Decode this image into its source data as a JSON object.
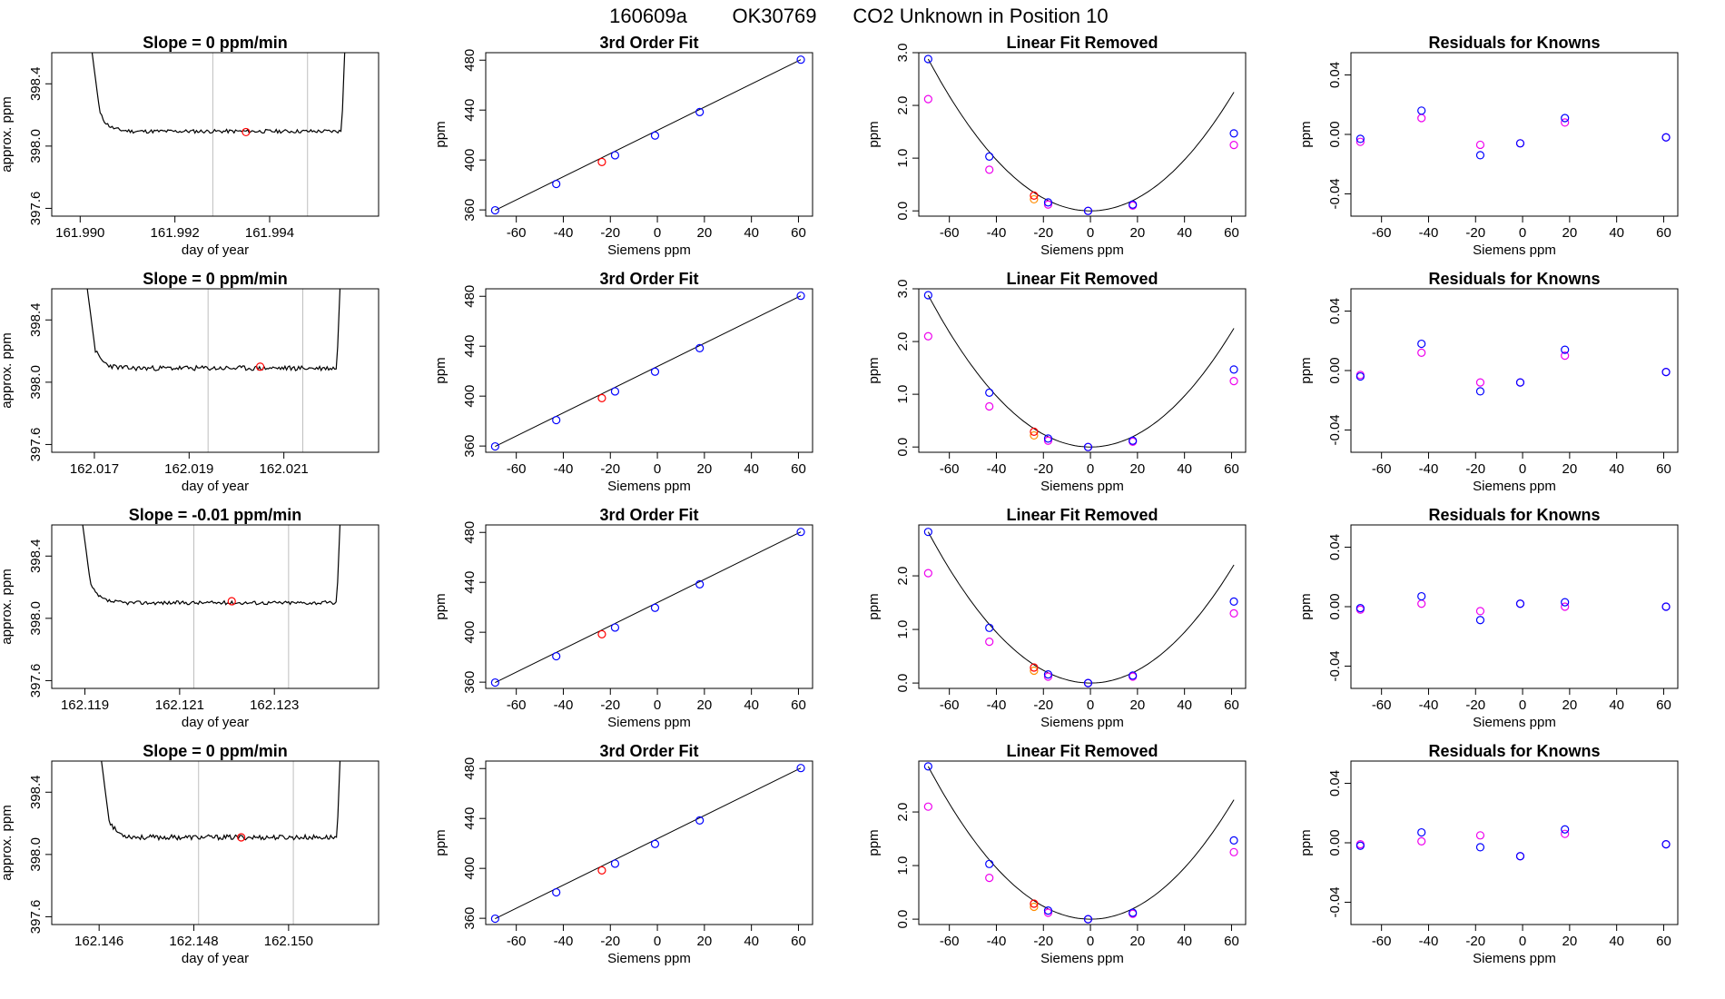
{
  "header": {
    "run": "160609a",
    "tank": "OK30769",
    "description": "CO2 Unknown in Position  10"
  },
  "colors": {
    "line": "#000000",
    "box": "#000000",
    "vline": "#bebebe",
    "primary": "#0000ff",
    "secondary": "#ee00ee",
    "unknown_primary": "#ff0000",
    "unknown_secondary": "#ff8c00"
  },
  "chart_data": [
    {
      "type": "line",
      "row": 0,
      "panel": "trace",
      "title": "Slope =  0  ppm/min",
      "xlabel": "day of year",
      "ylabel": "approx. ppm",
      "xlim": [
        161.9894,
        161.9963
      ],
      "ylim": [
        397.55,
        398.6
      ],
      "xticks": [
        161.99,
        161.992,
        161.994
      ],
      "xticklabels": [
        "161.990",
        "161.992",
        "161.994"
      ],
      "yticks": [
        397.6,
        398.0,
        398.4
      ],
      "yticklabels": [
        "397.6",
        "398.0",
        "398.4"
      ],
      "vlines": [
        161.9928,
        161.9948
      ],
      "trace": {
        "x_start": 161.9902,
        "x_end": 161.9956,
        "y_rise": 398.72,
        "y_base": 398.095,
        "jitter": 0.012,
        "seed": 11
      },
      "unknown_point": {
        "x": 161.9935,
        "y": 398.09
      }
    },
    {
      "type": "scatter",
      "row": 0,
      "panel": "fit",
      "title": "3rd Order Fit",
      "xlabel": "Siemens ppm",
      "ylabel": "ppm",
      "xlim": [
        -73,
        66
      ],
      "ylim": [
        355,
        486
      ],
      "xticks": [
        -60,
        -40,
        -20,
        0,
        20,
        40,
        60
      ],
      "yticks": [
        360,
        400,
        440,
        480
      ],
      "fit_line": {
        "x1": -69,
        "y1": 359.7,
        "x2": 61,
        "y2": 480.4
      },
      "points_primary": {
        "x": [
          -69,
          -43,
          -18,
          -1,
          18,
          61
        ],
        "y": [
          359.7,
          380.8,
          403.8,
          419.6,
          438.4,
          480.4
        ]
      },
      "unknown_point": {
        "x": -23.6,
        "y": 398.4
      }
    },
    {
      "type": "scatter",
      "row": 0,
      "panel": "linear",
      "title": "Linear Fit Removed",
      "xlabel": "Siemens ppm",
      "ylabel": "ppm",
      "xlim": [
        -73,
        66
      ],
      "ylim": [
        -0.1,
        3.0
      ],
      "xticks": [
        -60,
        -40,
        -20,
        0,
        20,
        40,
        60
      ],
      "yticks": [
        0.0,
        1.0,
        2.0,
        3.0
      ],
      "yticklabels": [
        "0.0",
        "1.0",
        "2.0",
        "3.0"
      ],
      "curve": {
        "type": "parabola",
        "x0": 0,
        "xmin": -69,
        "xmax": 61,
        "xref": -69,
        "yref": 2.88
      },
      "points_primary": {
        "x": [
          -69,
          -43,
          -18,
          -1,
          18,
          61
        ],
        "y": [
          2.88,
          1.03,
          0.16,
          0.0,
          0.12,
          1.47
        ]
      },
      "points_secondary": {
        "x": [
          -69,
          -43,
          -18,
          -1,
          18,
          61
        ],
        "y": [
          2.12,
          0.78,
          0.12,
          0.0,
          0.1,
          1.25
        ]
      },
      "unknown_primary": {
        "x": -24,
        "y": 0.29
      },
      "unknown_secondary": {
        "x": -24,
        "y": 0.22
      }
    },
    {
      "type": "scatter",
      "row": 0,
      "panel": "residuals",
      "title": "Residuals for Knowns",
      "xlabel": "Siemens ppm",
      "ylabel": "ppm",
      "xlim": [
        -73,
        66
      ],
      "ylim": [
        -0.055,
        0.055
      ],
      "xticks": [
        -60,
        -40,
        -20,
        0,
        20,
        40,
        60
      ],
      "yticks": [
        -0.04,
        0.0,
        0.04
      ],
      "yticklabels": [
        "-0.04",
        "0.00",
        "0.04"
      ],
      "points_primary": {
        "x": [
          -69,
          -43,
          -18,
          -1,
          18,
          61
        ],
        "y": [
          -0.003,
          0.016,
          -0.014,
          -0.006,
          0.011,
          -0.002
        ]
      },
      "points_secondary": {
        "x": [
          -69,
          -43,
          -18,
          -1,
          18,
          61
        ],
        "y": [
          -0.005,
          0.011,
          -0.007,
          -0.006,
          0.008,
          -0.002
        ]
      }
    },
    {
      "type": "line",
      "row": 1,
      "panel": "trace",
      "title": "Slope =  0  ppm/min",
      "xlabel": "day of year",
      "ylabel": "approx. ppm",
      "xlim": [
        162.0161,
        162.023
      ],
      "ylim": [
        397.55,
        398.6
      ],
      "xticks": [
        162.017,
        162.019,
        162.021
      ],
      "xticklabels": [
        "162.017",
        "162.019",
        "162.021"
      ],
      "yticks": [
        397.6,
        398.0,
        398.4
      ],
      "yticklabels": [
        "397.6",
        "398.0",
        "398.4"
      ],
      "vlines": [
        162.0194,
        162.0214
      ],
      "trace": {
        "x_start": 162.0168,
        "x_end": 162.0222,
        "y_rise": 398.72,
        "y_base": 398.09,
        "jitter": 0.016,
        "seed": 23
      },
      "unknown_point": {
        "x": 162.0205,
        "y": 398.1
      }
    },
    {
      "type": "scatter",
      "row": 1,
      "panel": "fit",
      "title": "3rd Order Fit",
      "xlabel": "Siemens ppm",
      "ylabel": "ppm",
      "xlim": [
        -73,
        66
      ],
      "ylim": [
        355,
        486
      ],
      "xticks": [
        -60,
        -40,
        -20,
        0,
        20,
        40,
        60
      ],
      "yticks": [
        360,
        400,
        440,
        480
      ],
      "fit_line": {
        "x1": -69,
        "y1": 359.7,
        "x2": 61,
        "y2": 480.4
      },
      "points_primary": {
        "x": [
          -69,
          -43,
          -18,
          -1,
          18,
          61
        ],
        "y": [
          359.7,
          380.8,
          403.8,
          419.6,
          438.4,
          480.4
        ]
      },
      "unknown_point": {
        "x": -23.6,
        "y": 398.4
      }
    },
    {
      "type": "scatter",
      "row": 1,
      "panel": "linear",
      "title": "Linear Fit Removed",
      "xlabel": "Siemens ppm",
      "ylabel": "ppm",
      "xlim": [
        -73,
        66
      ],
      "ylim": [
        -0.1,
        3.0
      ],
      "xticks": [
        -60,
        -40,
        -20,
        0,
        20,
        40,
        60
      ],
      "yticks": [
        0.0,
        1.0,
        2.0,
        3.0
      ],
      "yticklabels": [
        "0.0",
        "1.0",
        "2.0",
        "3.0"
      ],
      "curve": {
        "type": "parabola",
        "x0": 0,
        "xmin": -69,
        "xmax": 61,
        "xref": -69,
        "yref": 2.88
      },
      "points_primary": {
        "x": [
          -69,
          -43,
          -18,
          -1,
          18,
          61
        ],
        "y": [
          2.88,
          1.03,
          0.16,
          0.0,
          0.12,
          1.47
        ]
      },
      "points_secondary": {
        "x": [
          -69,
          -43,
          -18,
          -1,
          18,
          61
        ],
        "y": [
          2.1,
          0.77,
          0.12,
          0.0,
          0.1,
          1.25
        ]
      },
      "unknown_primary": {
        "x": -24,
        "y": 0.29
      },
      "unknown_secondary": {
        "x": -24,
        "y": 0.22
      }
    },
    {
      "type": "scatter",
      "row": 1,
      "panel": "residuals",
      "title": "Residuals for Knowns",
      "xlabel": "Siemens ppm",
      "ylabel": "ppm",
      "xlim": [
        -73,
        66
      ],
      "ylim": [
        -0.055,
        0.055
      ],
      "xticks": [
        -60,
        -40,
        -20,
        0,
        20,
        40,
        60
      ],
      "yticks": [
        -0.04,
        0.0,
        0.04
      ],
      "yticklabels": [
        "-0.04",
        "0.00",
        "0.04"
      ],
      "points_primary": {
        "x": [
          -69,
          -43,
          -18,
          -1,
          18,
          61
        ],
        "y": [
          -0.004,
          0.018,
          -0.014,
          -0.008,
          0.014,
          -0.001
        ]
      },
      "points_secondary": {
        "x": [
          -69,
          -43,
          -18,
          -1,
          18,
          61
        ],
        "y": [
          -0.003,
          0.012,
          -0.008,
          -0.008,
          0.01,
          -0.001
        ]
      }
    },
    {
      "type": "line",
      "row": 2,
      "panel": "trace",
      "title": "Slope =  -0.01  ppm/min",
      "xlabel": "day of year",
      "ylabel": "approx. ppm",
      "xlim": [
        162.1183,
        162.1252
      ],
      "ylim": [
        397.55,
        398.6
      ],
      "xticks": [
        162.119,
        162.121,
        162.123
      ],
      "xticklabels": [
        "162.119",
        "162.121",
        "162.123"
      ],
      "yticks": [
        397.6,
        398.0,
        398.4
      ],
      "yticklabels": [
        "397.6",
        "398.0",
        "398.4"
      ],
      "vlines": [
        162.1213,
        162.1233
      ],
      "trace": {
        "x_start": 162.1189,
        "x_end": 162.1244,
        "y_rise": 398.72,
        "y_base": 398.1,
        "jitter": 0.012,
        "seed": 37
      },
      "unknown_point": {
        "x": 162.1221,
        "y": 398.11
      }
    },
    {
      "type": "scatter",
      "row": 2,
      "panel": "fit",
      "title": "3rd Order Fit",
      "xlabel": "Siemens ppm",
      "ylabel": "ppm",
      "xlim": [
        -73,
        66
      ],
      "ylim": [
        355,
        486
      ],
      "xticks": [
        -60,
        -40,
        -20,
        0,
        20,
        40,
        60
      ],
      "yticks": [
        360,
        400,
        440,
        480
      ],
      "fit_line": {
        "x1": -69,
        "y1": 359.7,
        "x2": 61,
        "y2": 480.4
      },
      "points_primary": {
        "x": [
          -69,
          -43,
          -18,
          -1,
          18,
          61
        ],
        "y": [
          359.7,
          380.8,
          403.8,
          419.6,
          438.4,
          480.4
        ]
      },
      "unknown_point": {
        "x": -23.6,
        "y": 398.4
      }
    },
    {
      "type": "scatter",
      "row": 2,
      "panel": "linear",
      "title": "Linear Fit Removed",
      "xlabel": "Siemens ppm",
      "ylabel": "ppm",
      "xlim": [
        -73,
        66
      ],
      "ylim": [
        -0.1,
        2.95
      ],
      "xticks": [
        -60,
        -40,
        -20,
        0,
        20,
        40,
        60
      ],
      "yticks": [
        0.0,
        1.0,
        2.0
      ],
      "yticklabels": [
        "0.0",
        "1.0",
        "2.0"
      ],
      "curve": {
        "type": "parabola",
        "x0": 0,
        "xmin": -69,
        "xmax": 61,
        "xref": -69,
        "yref": 2.82
      },
      "points_primary": {
        "x": [
          -69,
          -43,
          -18,
          -1,
          18,
          61
        ],
        "y": [
          2.82,
          1.03,
          0.16,
          0.0,
          0.14,
          1.52
        ]
      },
      "points_secondary": {
        "x": [
          -69,
          -43,
          -18,
          -1,
          18,
          61
        ],
        "y": [
          2.05,
          0.77,
          0.12,
          0.0,
          0.12,
          1.3
        ]
      },
      "unknown_primary": {
        "x": -24,
        "y": 0.29
      },
      "unknown_secondary": {
        "x": -24,
        "y": 0.23
      }
    },
    {
      "type": "scatter",
      "row": 2,
      "panel": "residuals",
      "title": "Residuals for Knowns",
      "xlabel": "Siemens ppm",
      "ylabel": "ppm",
      "xlim": [
        -73,
        66
      ],
      "ylim": [
        -0.055,
        0.055
      ],
      "xticks": [
        -60,
        -40,
        -20,
        0,
        20,
        40,
        60
      ],
      "yticks": [
        -0.04,
        0.0,
        0.04
      ],
      "yticklabels": [
        "-0.04",
        "0.00",
        "0.04"
      ],
      "points_primary": {
        "x": [
          -69,
          -43,
          -18,
          -1,
          18,
          61
        ],
        "y": [
          -0.001,
          0.007,
          -0.009,
          0.002,
          0.003,
          0.0
        ]
      },
      "points_secondary": {
        "x": [
          -69,
          -43,
          -18,
          -1,
          18,
          61
        ],
        "y": [
          -0.002,
          0.002,
          -0.003,
          0.002,
          0.0,
          0.0
        ]
      }
    },
    {
      "type": "line",
      "row": 3,
      "panel": "trace",
      "title": "Slope =  0  ppm/min",
      "xlabel": "day of year",
      "ylabel": "approx. ppm",
      "xlim": [
        162.145,
        162.1519
      ],
      "ylim": [
        397.55,
        398.6
      ],
      "xticks": [
        162.146,
        162.148,
        162.15
      ],
      "xticklabels": [
        "162.146",
        "162.148",
        "162.150"
      ],
      "yticks": [
        397.6,
        398.0,
        398.4
      ],
      "yticklabels": [
        "397.6",
        "398.0",
        "398.4"
      ],
      "vlines": [
        162.1481,
        162.1501
      ],
      "trace": {
        "x_start": 162.146,
        "x_end": 162.1511,
        "y_rise": 398.72,
        "y_base": 398.11,
        "jitter": 0.016,
        "seed": 53
      },
      "unknown_point": {
        "x": 162.149,
        "y": 398.11
      }
    },
    {
      "type": "scatter",
      "row": 3,
      "panel": "fit",
      "title": "3rd Order Fit",
      "xlabel": "Siemens ppm",
      "ylabel": "ppm",
      "xlim": [
        -73,
        66
      ],
      "ylim": [
        355,
        486
      ],
      "xticks": [
        -60,
        -40,
        -20,
        0,
        20,
        40,
        60
      ],
      "yticks": [
        360,
        400,
        440,
        480
      ],
      "fit_line": {
        "x1": -69,
        "y1": 359.7,
        "x2": 61,
        "y2": 480.4
      },
      "points_primary": {
        "x": [
          -69,
          -43,
          -18,
          -1,
          18,
          61
        ],
        "y": [
          359.7,
          380.8,
          403.8,
          419.6,
          438.4,
          480.4
        ]
      },
      "unknown_point": {
        "x": -23.6,
        "y": 398.4
      }
    },
    {
      "type": "scatter",
      "row": 3,
      "panel": "linear",
      "title": "Linear Fit Removed",
      "xlabel": "Siemens ppm",
      "ylabel": "ppm",
      "xlim": [
        -73,
        66
      ],
      "ylim": [
        -0.1,
        2.95
      ],
      "xticks": [
        -60,
        -40,
        -20,
        0,
        20,
        40,
        60
      ],
      "yticks": [
        0.0,
        1.0,
        2.0
      ],
      "yticklabels": [
        "0.0",
        "1.0",
        "2.0"
      ],
      "curve": {
        "type": "parabola",
        "x0": 0,
        "xmin": -69,
        "xmax": 61,
        "xref": -69,
        "yref": 2.85
      },
      "points_primary": {
        "x": [
          -69,
          -43,
          -18,
          -1,
          18,
          61
        ],
        "y": [
          2.85,
          1.03,
          0.16,
          0.0,
          0.12,
          1.47
        ]
      },
      "points_secondary": {
        "x": [
          -69,
          -43,
          -18,
          -1,
          18,
          61
        ],
        "y": [
          2.1,
          0.77,
          0.12,
          0.0,
          0.1,
          1.25
        ]
      },
      "unknown_primary": {
        "x": -24,
        "y": 0.29
      },
      "unknown_secondary": {
        "x": -24,
        "y": 0.23
      }
    },
    {
      "type": "scatter",
      "row": 3,
      "panel": "residuals",
      "title": "Residuals for Knowns",
      "xlabel": "Siemens ppm",
      "ylabel": "ppm",
      "xlim": [
        -73,
        66
      ],
      "ylim": [
        -0.055,
        0.055
      ],
      "xticks": [
        -60,
        -40,
        -20,
        0,
        20,
        40,
        60
      ],
      "yticks": [
        -0.04,
        0.0,
        0.04
      ],
      "yticklabels": [
        "-0.04",
        "0.00",
        "0.04"
      ],
      "points_primary": {
        "x": [
          -69,
          -43,
          -18,
          -1,
          18,
          61
        ],
        "y": [
          -0.002,
          0.007,
          -0.003,
          -0.009,
          0.009,
          -0.001
        ]
      },
      "points_secondary": {
        "x": [
          -69,
          -43,
          -18,
          -1,
          18,
          61
        ],
        "y": [
          -0.001,
          0.001,
          0.005,
          -0.009,
          0.006,
          -0.001
        ]
      }
    }
  ]
}
